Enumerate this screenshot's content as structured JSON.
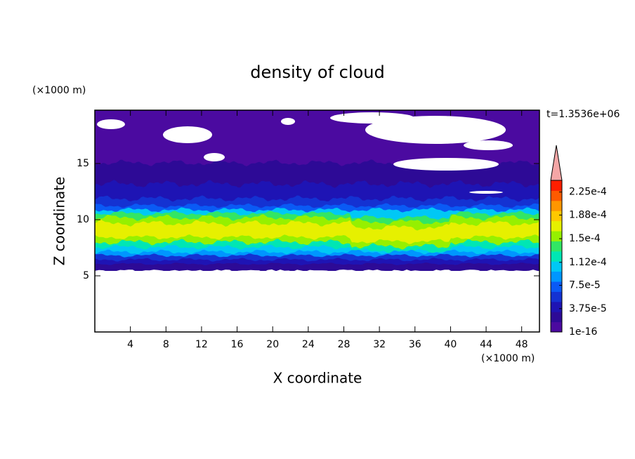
{
  "chart_data": {
    "type": "contour",
    "title": "density of cloud",
    "xlabel": "X coordinate",
    "ylabel": "Z coordinate",
    "xunit": "(×1000 m)",
    "yunit": "(×1000 m)",
    "annotation": "t=1.3536e+06",
    "xlim": [
      0,
      50
    ],
    "ylim": [
      0,
      19.75
    ],
    "xticks": [
      4,
      8,
      12,
      16,
      20,
      24,
      28,
      32,
      36,
      40,
      44,
      48
    ],
    "yticks": [
      5,
      10,
      15
    ],
    "colorbar": {
      "clim": [
        1e-16,
        0.00024375
      ],
      "ticks": [
        1e-16,
        {
          "value": 3.75e-05,
          "label": "3.75e-5"
        },
        {
          "value": 7.5e-05,
          "label": "7.5e-5"
        },
        {
          "value": 0.000112,
          "label": "1.12e-4"
        },
        {
          "value": 0.00015,
          "label": "1.5e-4"
        },
        {
          "value": 0.000188,
          "label": "1.88e-4"
        },
        {
          "value": 0.000225,
          "label": "2.25e-4"
        }
      ],
      "colors": [
        "#4b0aa0",
        "#2d0a96",
        "#1e14b4",
        "#1432d2",
        "#0a5af5",
        "#0096ff",
        "#00c8f5",
        "#00e6b4",
        "#32e664",
        "#96f000",
        "#e6f000",
        "#ffc800",
        "#ff9600",
        "#ff5a00",
        "#ff1e00"
      ],
      "extend_color": "#f4a6a6"
    }
  }
}
